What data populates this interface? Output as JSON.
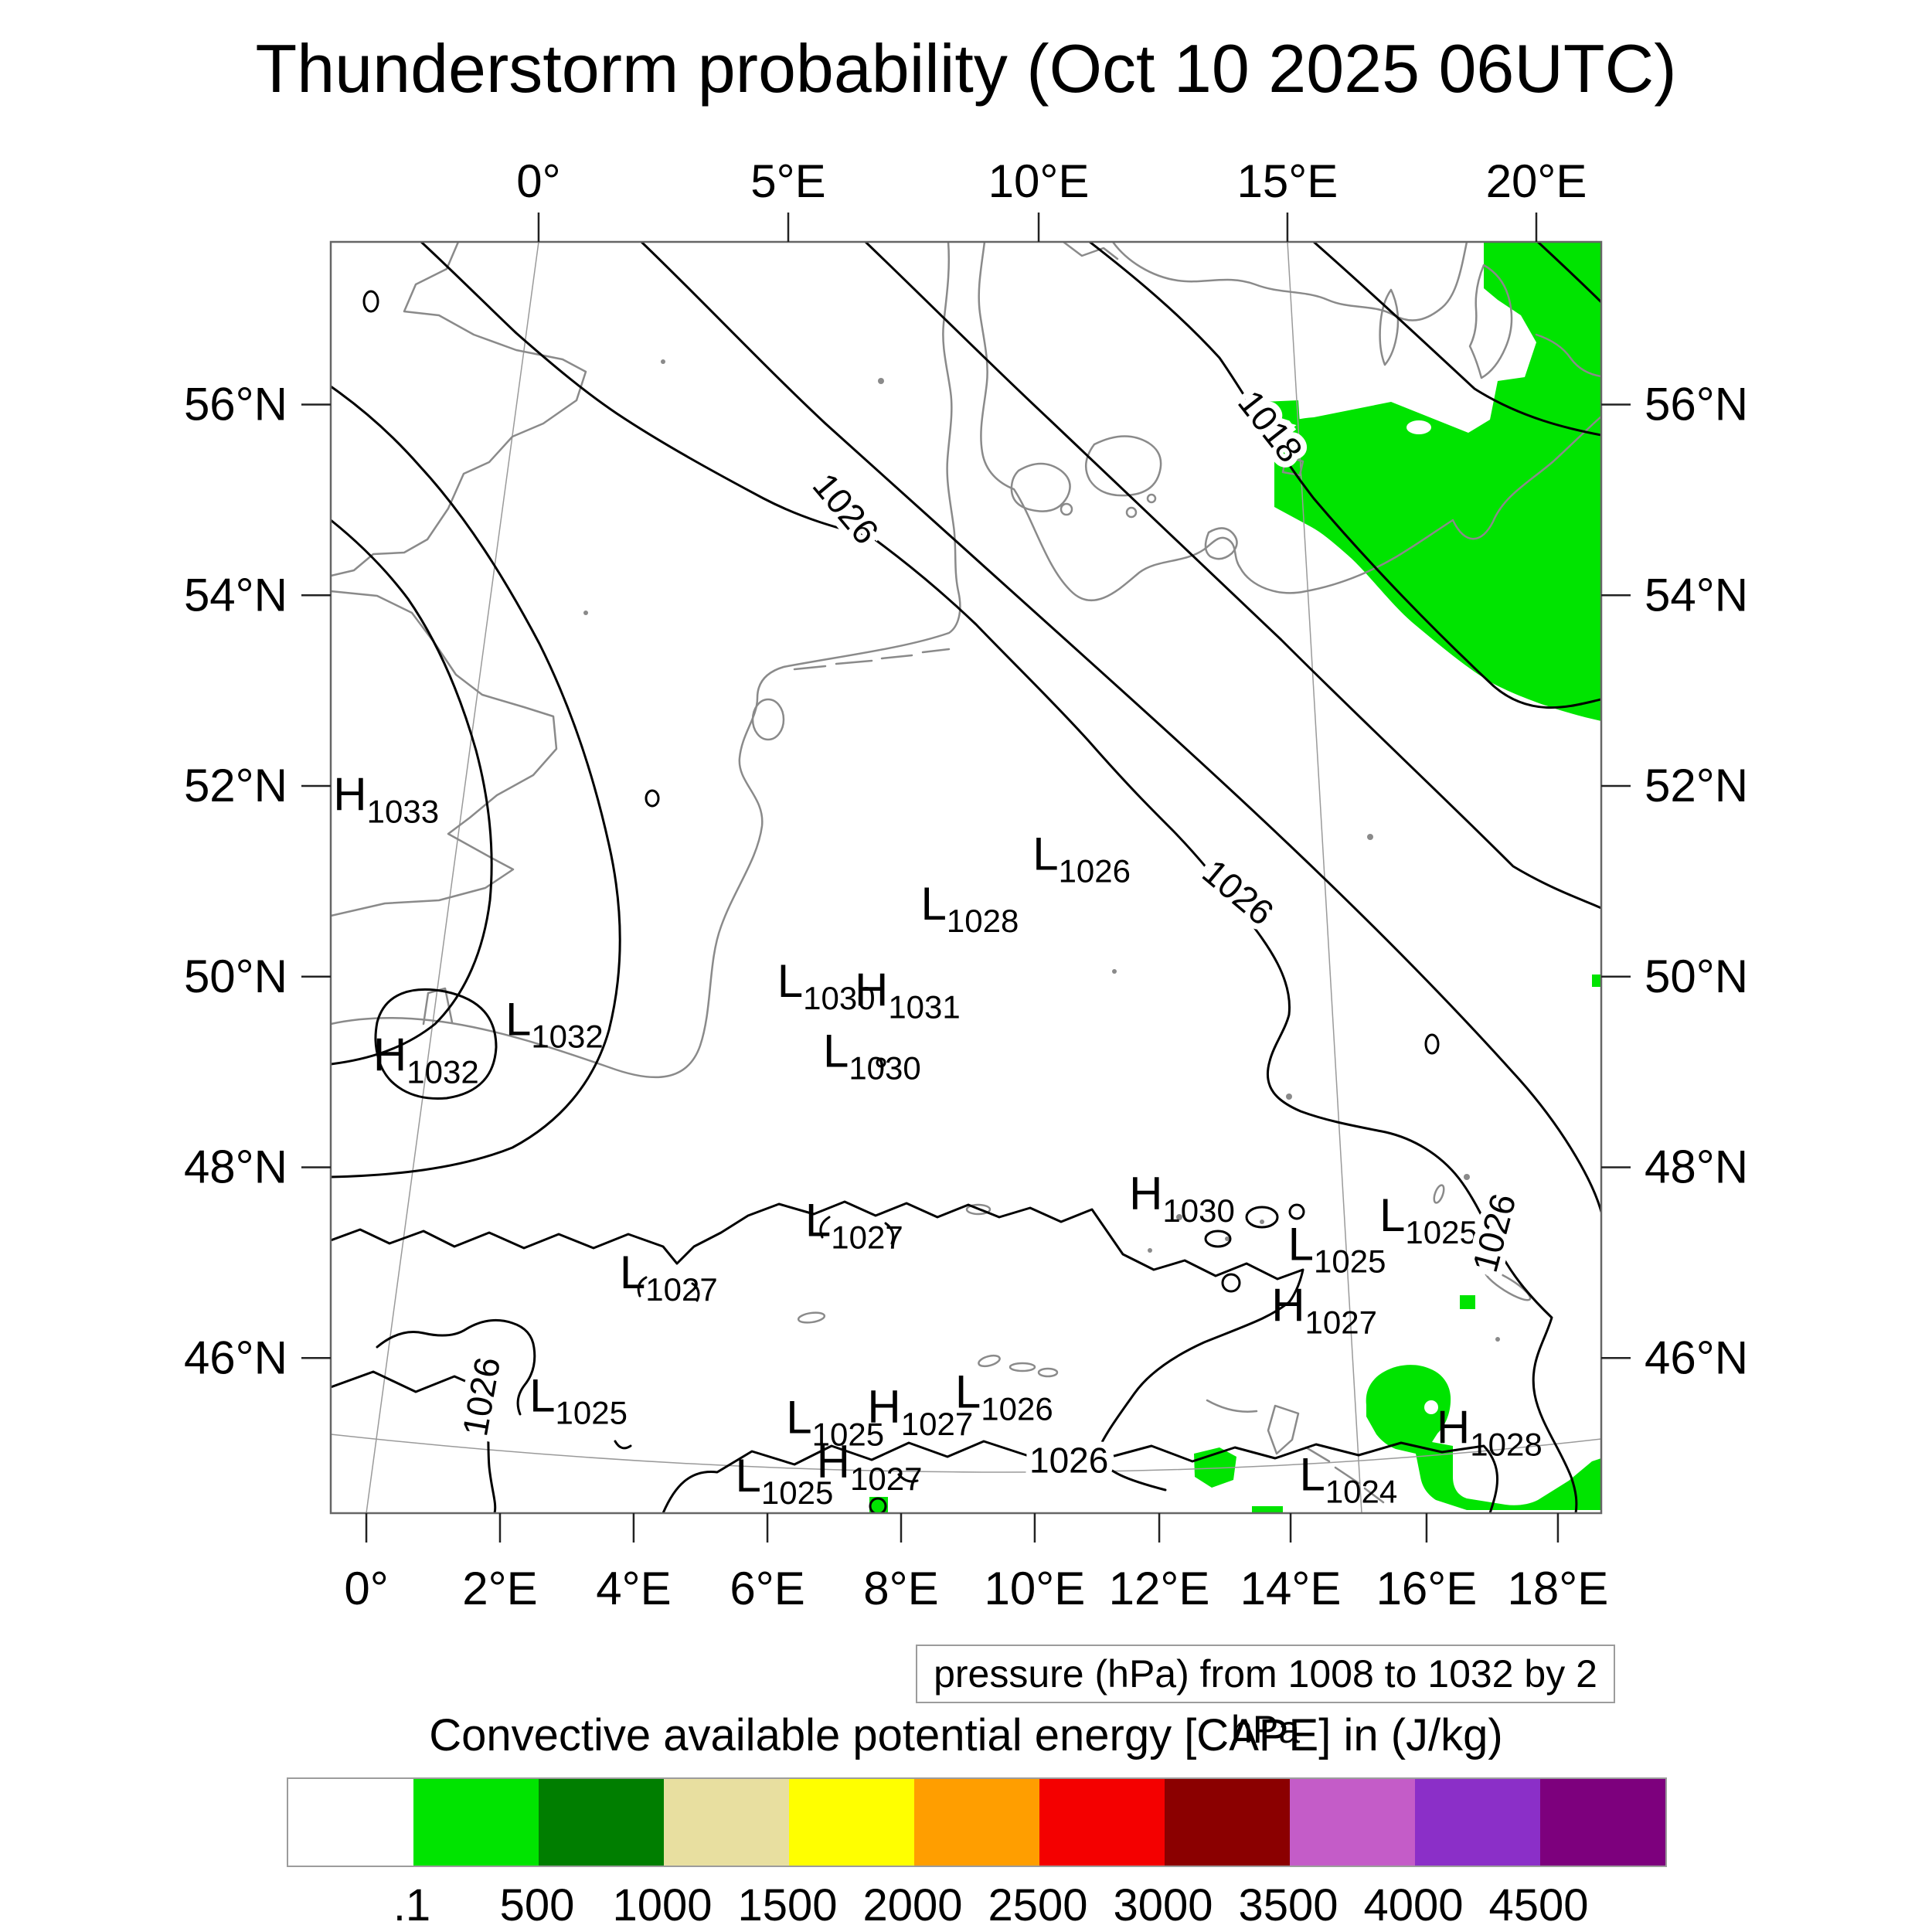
{
  "title": "Thunderstorm probability (Oct 10 2025 06UTC)",
  "map": {
    "caption": "pressure (hPa) from 1008 to 1032 by 2 hPa",
    "top_axis_labels": [
      {
        "text": "0°",
        "fx": 0.1636
      },
      {
        "text": "5°E",
        "fx": 0.3601
      },
      {
        "text": "10°E",
        "fx": 0.5572
      },
      {
        "text": "15°E",
        "fx": 0.753
      },
      {
        "text": "20°E",
        "fx": 0.9489
      }
    ],
    "bottom_axis_labels": [
      {
        "text": "0°",
        "fx": 0.028
      },
      {
        "text": "2°E",
        "fx": 0.1332
      },
      {
        "text": "4°E",
        "fx": 0.2384
      },
      {
        "text": "6°E",
        "fx": 0.3437
      },
      {
        "text": "8°E",
        "fx": 0.4489
      },
      {
        "text": "10°E",
        "fx": 0.5541
      },
      {
        "text": "12°E",
        "fx": 0.6521
      },
      {
        "text": "14°E",
        "fx": 0.7555
      },
      {
        "text": "16°E",
        "fx": 0.8625
      },
      {
        "text": "18°E",
        "fx": 0.9659
      }
    ],
    "left_axis_labels": [
      {
        "text": "56°N",
        "fy": 0.128
      },
      {
        "text": "54°N",
        "fy": 0.278
      },
      {
        "text": "52°N",
        "fy": 0.428
      },
      {
        "text": "50°N",
        "fy": 0.578
      },
      {
        "text": "48°N",
        "fy": 0.728
      },
      {
        "text": "46°N",
        "fy": 0.878
      }
    ],
    "right_axis_labels": [
      {
        "text": "56°N",
        "fy": 0.128
      },
      {
        "text": "54°N",
        "fy": 0.278
      },
      {
        "text": "52°N",
        "fy": 0.428
      },
      {
        "text": "50°N",
        "fy": 0.578
      },
      {
        "text": "48°N",
        "fy": 0.728
      },
      {
        "text": "46°N",
        "fy": 0.878
      }
    ],
    "pressure_centers": [
      {
        "letter": "H",
        "value": "1033",
        "fx": 0.002,
        "fy": 0.447,
        "anchor": "start"
      },
      {
        "letter": "L",
        "value": "1032",
        "fx": 0.176,
        "fy": 0.624,
        "anchor": "middle"
      },
      {
        "letter": "H",
        "value": "1032",
        "fx": 0.075,
        "fy": 0.652,
        "anchor": "middle"
      },
      {
        "letter": "L",
        "value": "1028",
        "fx": 0.503,
        "fy": 0.533,
        "anchor": "middle"
      },
      {
        "letter": "L",
        "value": "1026",
        "fx": 0.591,
        "fy": 0.494,
        "anchor": "middle"
      },
      {
        "letter": "L",
        "value": "1030",
        "fx": 0.39,
        "fy": 0.594,
        "anchor": "middle"
      },
      {
        "letter": "H",
        "value": "1031",
        "fx": 0.454,
        "fy": 0.601,
        "anchor": "middle"
      },
      {
        "letter": "L",
        "value": "1030",
        "fx": 0.426,
        "fy": 0.649,
        "anchor": "middle"
      },
      {
        "letter": "L",
        "value": "1027",
        "fx": 0.412,
        "fy": 0.782,
        "anchor": "middle"
      },
      {
        "letter": "H",
        "value": "1030",
        "fx": 0.67,
        "fy": 0.761,
        "anchor": "middle"
      },
      {
        "letter": "L",
        "value": "1025",
        "fx": 0.864,
        "fy": 0.778,
        "anchor": "middle"
      },
      {
        "letter": "L",
        "value": "1025",
        "fx": 0.792,
        "fy": 0.801,
        "anchor": "middle"
      },
      {
        "letter": "H",
        "value": "1027",
        "fx": 0.782,
        "fy": 0.849,
        "anchor": "middle"
      },
      {
        "letter": "L",
        "value": "1027",
        "fx": 0.266,
        "fy": 0.823,
        "anchor": "middle"
      },
      {
        "letter": "L",
        "value": "1025",
        "fx": 0.195,
        "fy": 0.92,
        "anchor": "middle"
      },
      {
        "letter": "L",
        "value": "1025",
        "fx": 0.397,
        "fy": 0.937,
        "anchor": "middle"
      },
      {
        "letter": "H",
        "value": "1027",
        "fx": 0.464,
        "fy": 0.929,
        "anchor": "middle"
      },
      {
        "letter": "L",
        "value": "1026",
        "fx": 0.53,
        "fy": 0.917,
        "anchor": "middle"
      },
      {
        "letter": "L",
        "value": "1025",
        "fx": 0.357,
        "fy": 0.983,
        "anchor": "middle"
      },
      {
        "letter": "H",
        "value": "1027",
        "fx": 0.424,
        "fy": 0.972,
        "anchor": "middle"
      },
      {
        "letter": "H",
        "value": "1028",
        "fx": 0.912,
        "fy": 0.945,
        "anchor": "middle"
      },
      {
        "letter": "L",
        "value": "1024",
        "fx": 0.801,
        "fy": 0.982,
        "anchor": "middle"
      }
    ],
    "contour_labels": [
      {
        "text": "1026",
        "fx": 0.398,
        "fy": 0.216,
        "rot": 50
      },
      {
        "text": "1018",
        "fx": 0.732,
        "fy": 0.151,
        "rot": 52
      },
      {
        "text": "1026",
        "fx": 0.708,
        "fy": 0.519,
        "rot": 40
      },
      {
        "text": "1026",
        "fx": 0.128,
        "fy": 0.91,
        "rot": -80
      },
      {
        "text": "1026",
        "fx": 0.925,
        "fy": 0.782,
        "rot": -75
      },
      {
        "text": "1026",
        "fx": 0.581,
        "fy": 0.968,
        "rot": 0
      }
    ]
  },
  "legend": {
    "title": "Convective available potential energy [CAPE] in (J/kg)",
    "tick_labels": [
      ".1",
      "500",
      "1000",
      "1500",
      "2000",
      "2500",
      "3000",
      "3500",
      "4000",
      "4500"
    ],
    "cell_colors": [
      "#ffffff",
      "#00e400",
      "#007e00",
      "#e8dfa0",
      "#ffff00",
      "#ff9e00",
      "#f40000",
      "#8b0000",
      "#c45cc8",
      "#8b2fc8",
      "#7d007d"
    ]
  }
}
